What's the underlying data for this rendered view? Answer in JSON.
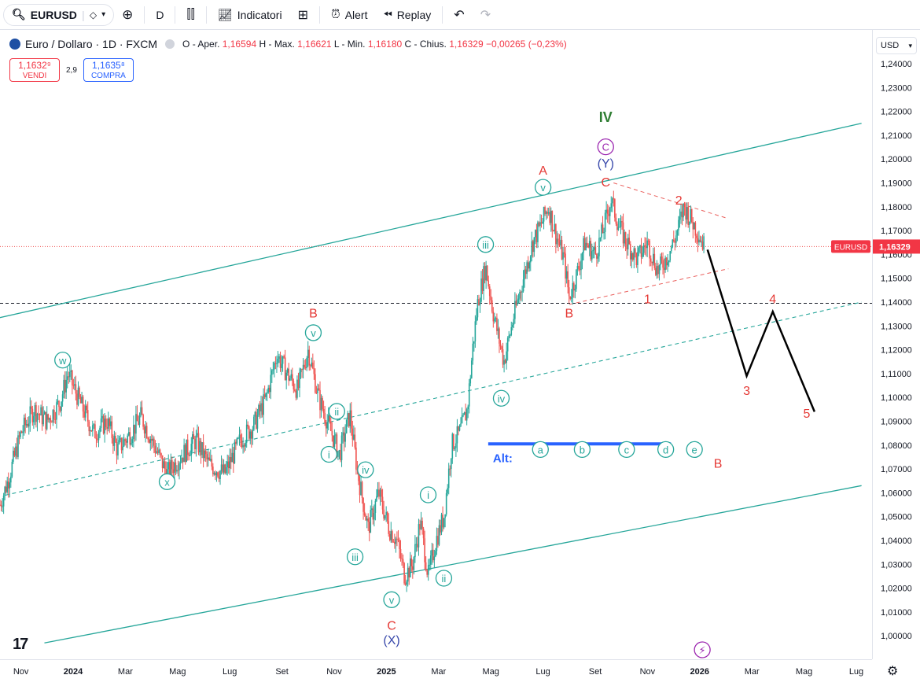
{
  "toolbar": {
    "symbol": "EURUSD",
    "interval": "D",
    "indicators_label": "Indicatori",
    "alert_label": "Alert",
    "replay_label": "Replay"
  },
  "legend": {
    "title": "Euro / Dollaro · 1D · FXCM",
    "o_label": "O - Aper.",
    "o_value": "1,16594",
    "h_label": "H - Max.",
    "h_value": "1,16621",
    "l_label": "L - Min.",
    "l_value": "1,16180",
    "c_label": "C - Chius.",
    "c_value": "1,16329",
    "change": "−0,00265 (−0,23%)"
  },
  "trade": {
    "sell_price": "1,1632⁹",
    "sell_label": "VENDI",
    "spread": "2,9",
    "buy_price": "1,1635⁸",
    "buy_label": "COMPRA"
  },
  "currency": "USD",
  "colors": {
    "up": "#26a69a",
    "down": "#ef5350",
    "channel": "#26a69a",
    "wave_red": "#e53935",
    "wave_green": "#2e7d32",
    "wave_blue": "#3949ab",
    "wave_purple": "#9c27b0",
    "alt_line": "#2962ff"
  },
  "chart_data": {
    "type": "candlestick",
    "symbol": "EURUSD",
    "ylim": [
      0.995,
      1.2475
    ],
    "yticks": [
      "1,24000",
      "1,23000",
      "1,22000",
      "1,21000",
      "1,20000",
      "1,19000",
      "1,18000",
      "1,17000",
      "1,16000",
      "1,15000",
      "1,14000",
      "1,13000",
      "1,12000",
      "1,11000",
      "1,10000",
      "1,09000",
      "1,08000",
      "1,07000",
      "1,06000",
      "1,05000",
      "1,04000",
      "1,03000",
      "1,02000",
      "1,01000",
      "1,00000"
    ],
    "xticks": [
      {
        "label": "Nov",
        "m": -2
      },
      {
        "label": "2024",
        "m": 0
      },
      {
        "label": "Mar",
        "m": 2
      },
      {
        "label": "Mag",
        "m": 4
      },
      {
        "label": "Lug",
        "m": 6
      },
      {
        "label": "Set",
        "m": 8
      },
      {
        "label": "Nov",
        "m": 10
      },
      {
        "label": "2025",
        "m": 12
      },
      {
        "label": "Mar",
        "m": 14
      },
      {
        "label": "Mag",
        "m": 16
      },
      {
        "label": "Lug",
        "m": 18
      },
      {
        "label": "Set",
        "m": 20
      },
      {
        "label": "Nov",
        "m": 22
      },
      {
        "label": "2026",
        "m": 24
      },
      {
        "label": "Mar",
        "m": 26
      },
      {
        "label": "Mag",
        "m": 28
      },
      {
        "label": "Lug",
        "m": 30
      }
    ],
    "last_price_label": "EURUSD",
    "last_price": "1,16329",
    "price_path": [
      [
        -2.8,
        1.055
      ],
      [
        -2.5,
        1.065
      ],
      [
        -2.0,
        1.085
      ],
      [
        -1.5,
        1.095
      ],
      [
        -1.0,
        1.09
      ],
      [
        -0.5,
        1.098
      ],
      [
        -0.2,
        1.11
      ],
      [
        0.3,
        1.097
      ],
      [
        0.8,
        1.085
      ],
      [
        1.3,
        1.09
      ],
      [
        1.7,
        1.078
      ],
      [
        2.2,
        1.085
      ],
      [
        2.6,
        1.092
      ],
      [
        3.1,
        1.08
      ],
      [
        3.6,
        1.068
      ],
      [
        4.1,
        1.075
      ],
      [
        4.7,
        1.082
      ],
      [
        5.2,
        1.072
      ],
      [
        5.8,
        1.068
      ],
      [
        6.4,
        1.082
      ],
      [
        6.9,
        1.088
      ],
      [
        7.4,
        1.1
      ],
      [
        7.8,
        1.118
      ],
      [
        8.2,
        1.11
      ],
      [
        8.6,
        1.103
      ],
      [
        9.0,
        1.12
      ],
      [
        9.4,
        1.1
      ],
      [
        9.8,
        1.088
      ],
      [
        10.2,
        1.076
      ],
      [
        10.6,
        1.093
      ],
      [
        10.9,
        1.068
      ],
      [
        11.3,
        1.045
      ],
      [
        11.7,
        1.06
      ],
      [
        12.1,
        1.045
      ],
      [
        12.4,
        1.04
      ],
      [
        12.7,
        1.025
      ],
      [
        13.0,
        1.03
      ],
      [
        13.3,
        1.048
      ],
      [
        13.6,
        1.025
      ],
      [
        13.9,
        1.04
      ],
      [
        14.2,
        1.05
      ],
      [
        14.5,
        1.08
      ],
      [
        14.8,
        1.085
      ],
      [
        15.1,
        1.095
      ],
      [
        15.3,
        1.12
      ],
      [
        15.5,
        1.14
      ],
      [
        15.8,
        1.155
      ],
      [
        16.1,
        1.135
      ],
      [
        16.5,
        1.115
      ],
      [
        16.9,
        1.135
      ],
      [
        17.2,
        1.148
      ],
      [
        17.6,
        1.165
      ],
      [
        17.9,
        1.172
      ],
      [
        18.2,
        1.18
      ],
      [
        18.5,
        1.168
      ],
      [
        18.8,
        1.158
      ],
      [
        19.0,
        1.142
      ],
      [
        19.3,
        1.152
      ],
      [
        19.6,
        1.165
      ],
      [
        20.0,
        1.16
      ],
      [
        20.3,
        1.17
      ],
      [
        20.6,
        1.183
      ],
      [
        20.9,
        1.172
      ],
      [
        21.2,
        1.165
      ],
      [
        21.6,
        1.158
      ],
      [
        22.0,
        1.165
      ],
      [
        22.4,
        1.153
      ],
      [
        22.8,
        1.16
      ],
      [
        23.1,
        1.168
      ],
      [
        23.4,
        1.18
      ],
      [
        23.8,
        1.172
      ],
      [
        24.2,
        1.163
      ]
    ],
    "forecast_path": [
      [
        24.3,
        1.162
      ],
      [
        25.8,
        1.109
      ],
      [
        26.8,
        1.136
      ],
      [
        28.4,
        1.094
      ]
    ],
    "channel_upper": [
      [
        -3,
        1.133
      ],
      [
        30.2,
        1.215
      ]
    ],
    "channel_lower": [
      [
        -1.1,
        0.997
      ],
      [
        30.2,
        1.063
      ]
    ],
    "channel_mid": [
      [
        -2.6,
        1.059
      ],
      [
        30.2,
        1.14
      ]
    ],
    "triangle_upper": [
      [
        20.7,
        1.19
      ],
      [
        25.1,
        1.175
      ]
    ],
    "triangle_lower": [
      [
        19.0,
        1.139
      ],
      [
        25.1,
        1.154
      ]
    ],
    "horizontal_level": 1.1395,
    "alt_line": {
      "y": 1.0805,
      "x1": 15.9,
      "x2": 22.9,
      "label": "Alt:"
    },
    "annotations": [
      {
        "text": "IV",
        "m": 20.4,
        "y": 1.2155,
        "color": "green",
        "style": "plain",
        "size": 18
      },
      {
        "text": "C",
        "m": 20.4,
        "y": 1.2035,
        "color": "purple",
        "style": "circle"
      },
      {
        "text": "(Y)",
        "m": 20.4,
        "y": 1.1965,
        "color": "blue",
        "style": "plain"
      },
      {
        "text": "C",
        "m": 20.4,
        "y": 1.1885,
        "color": "red",
        "style": "plain"
      },
      {
        "text": "A",
        "m": 18.0,
        "y": 1.1935,
        "color": "red",
        "style": "plain"
      },
      {
        "text": "v",
        "m": 18.0,
        "y": 1.1865,
        "color": "teal",
        "style": "circle"
      },
      {
        "text": "2",
        "m": 23.2,
        "y": 1.181,
        "color": "red",
        "style": "plain"
      },
      {
        "text": "1",
        "m": 22.0,
        "y": 1.1395,
        "color": "red",
        "style": "plain"
      },
      {
        "text": "B",
        "m": 19.0,
        "y": 1.1335,
        "color": "red",
        "style": "plain"
      },
      {
        "text": "iii",
        "m": 15.8,
        "y": 1.1625,
        "color": "teal",
        "style": "circle"
      },
      {
        "text": "iv",
        "m": 16.4,
        "y": 1.098,
        "color": "teal",
        "style": "circle"
      },
      {
        "text": "B",
        "m": 9.2,
        "y": 1.1335,
        "color": "red",
        "style": "plain"
      },
      {
        "text": "v",
        "m": 9.2,
        "y": 1.1255,
        "color": "teal",
        "style": "circle"
      },
      {
        "text": "w",
        "m": -0.4,
        "y": 1.114,
        "color": "teal",
        "style": "circle"
      },
      {
        "text": "x",
        "m": 3.6,
        "y": 1.063,
        "color": "teal",
        "style": "circle"
      },
      {
        "text": "ii",
        "m": 10.1,
        "y": 1.0925,
        "color": "teal",
        "style": "circle"
      },
      {
        "text": "i",
        "m": 9.8,
        "y": 1.0745,
        "color": "teal",
        "style": "circle"
      },
      {
        "text": "iv",
        "m": 11.2,
        "y": 1.068,
        "color": "teal",
        "style": "circle"
      },
      {
        "text": "iii",
        "m": 10.8,
        "y": 1.0315,
        "color": "teal",
        "style": "circle"
      },
      {
        "text": "i",
        "m": 13.6,
        "y": 1.0575,
        "color": "teal",
        "style": "circle"
      },
      {
        "text": "ii",
        "m": 14.2,
        "y": 1.0225,
        "color": "teal",
        "style": "circle"
      },
      {
        "text": "v",
        "m": 12.2,
        "y": 1.0135,
        "color": "teal",
        "style": "circle"
      },
      {
        "text": "C",
        "m": 12.2,
        "y": 1.0025,
        "color": "red",
        "style": "plain"
      },
      {
        "text": "(X)",
        "m": 12.2,
        "y": 0.9965,
        "color": "blue",
        "style": "plain"
      },
      {
        "text": "a",
        "m": 17.9,
        "y": 1.0765,
        "color": "teal",
        "style": "circle"
      },
      {
        "text": "b",
        "m": 19.5,
        "y": 1.0765,
        "color": "teal",
        "style": "circle"
      },
      {
        "text": "c",
        "m": 21.2,
        "y": 1.0765,
        "color": "teal",
        "style": "circle"
      },
      {
        "text": "d",
        "m": 22.7,
        "y": 1.0765,
        "color": "teal",
        "style": "circle"
      },
      {
        "text": "e",
        "m": 23.8,
        "y": 1.0765,
        "color": "teal",
        "style": "circle"
      },
      {
        "text": "B",
        "m": 24.7,
        "y": 1.0705,
        "color": "red",
        "style": "plain"
      },
      {
        "text": "3",
        "m": 25.8,
        "y": 1.101,
        "color": "red",
        "style": "plain"
      },
      {
        "text": "4",
        "m": 26.8,
        "y": 1.1395,
        "color": "red",
        "style": "plain"
      },
      {
        "text": "5",
        "m": 28.1,
        "y": 1.0915,
        "color": "red",
        "style": "plain"
      }
    ]
  }
}
